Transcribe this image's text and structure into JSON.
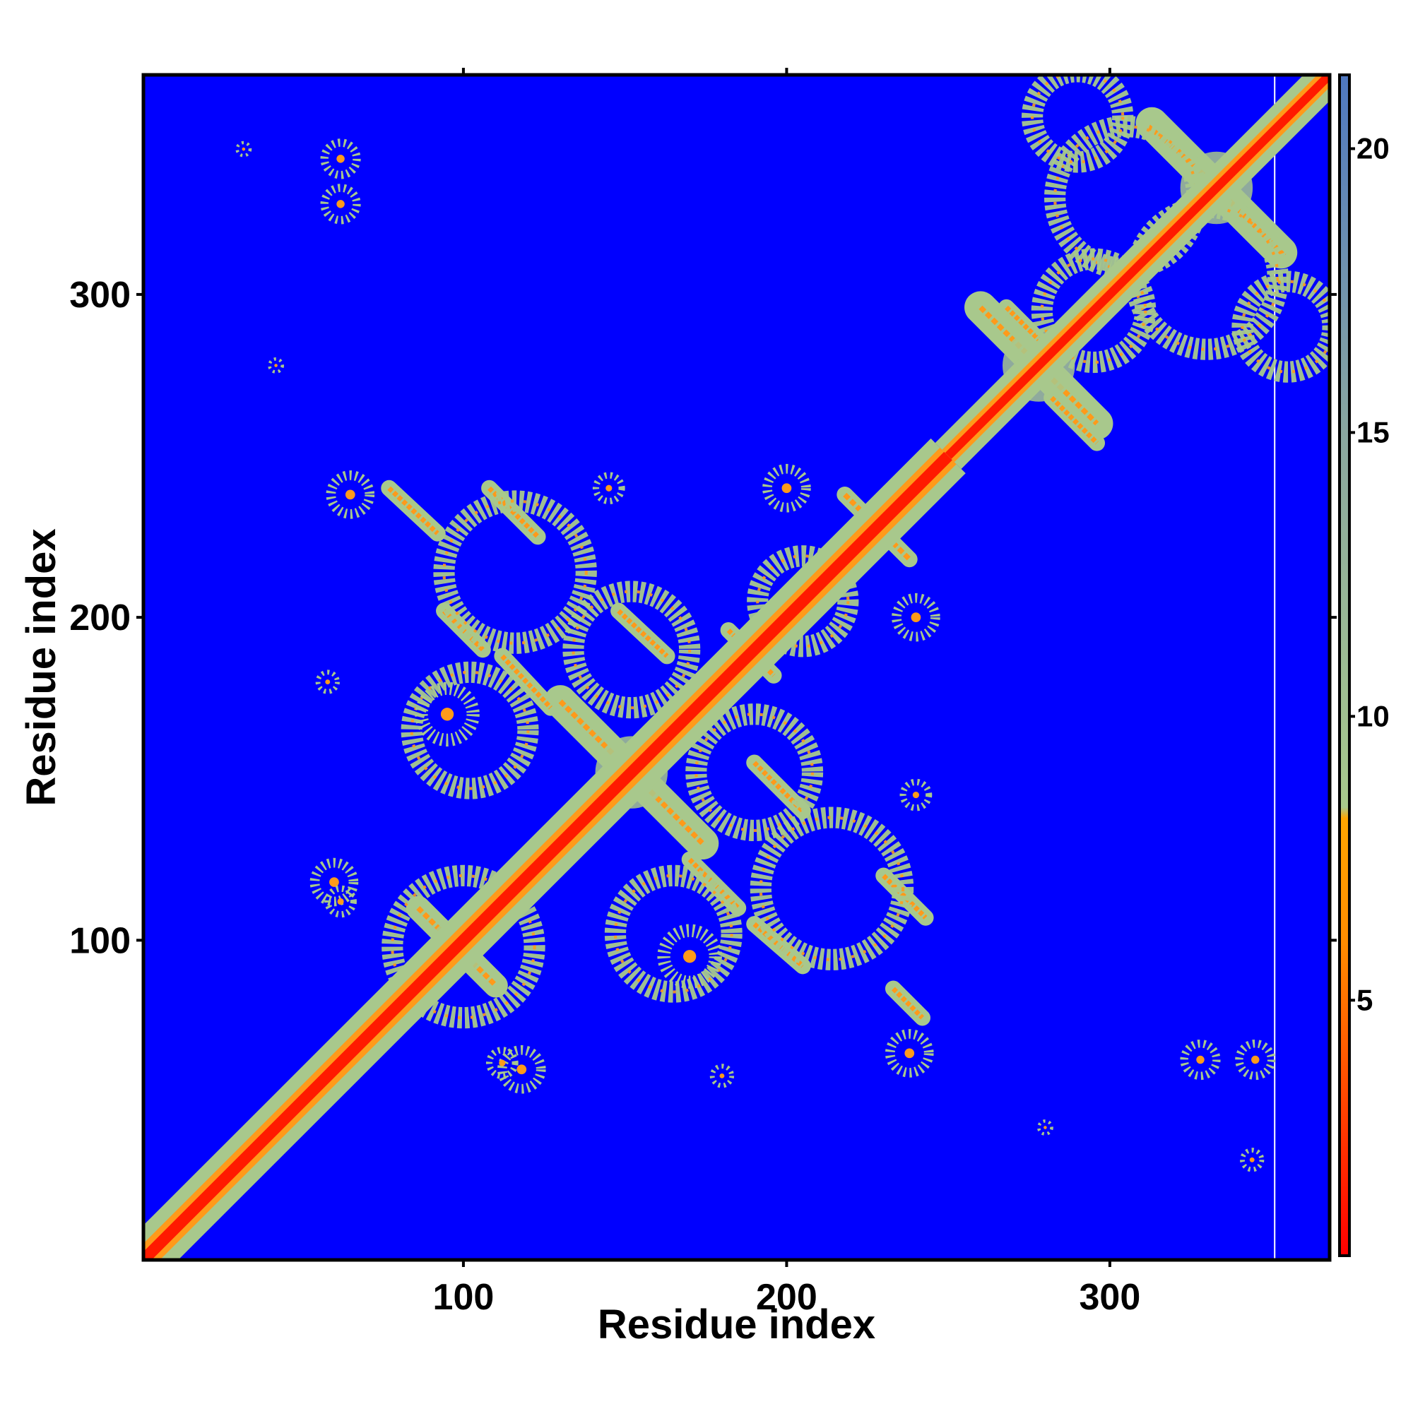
{
  "chart_data": {
    "type": "heatmap",
    "title": "",
    "xlabel": "Residue index",
    "ylabel": "Residue index",
    "xlim": [
      1,
      368
    ],
    "ylim": [
      1,
      368
    ],
    "x_ticks": [
      100,
      200,
      300
    ],
    "y_ticks": [
      100,
      200,
      300
    ],
    "colorbar": {
      "range": [
        0.5,
        21.3
      ],
      "ticks": [
        5,
        10,
        15,
        20
      ],
      "stops": [
        {
          "value": 0.5,
          "color": "#ff0000"
        },
        {
          "value": 6.0,
          "color": "#ff8c00"
        },
        {
          "value": 8.2,
          "color": "#ffa500"
        },
        {
          "value": 8.4,
          "color": "#a8c88c"
        },
        {
          "value": 15.0,
          "color": "#8aa7a0"
        },
        {
          "value": 21.3,
          "color": "#4f78c0"
        }
      ],
      "background_color": "#0000ff",
      "background_value": ">20"
    },
    "diagonal": [
      {
        "from": 1,
        "to": 250,
        "band_width": 8
      },
      {
        "from": 250,
        "to": 368,
        "band_width": 6
      }
    ],
    "features": [
      {
        "kind": "cross",
        "center": [
          152,
          152
        ],
        "half_length": 22,
        "band": 4
      },
      {
        "kind": "cross",
        "center": [
          98,
          98
        ],
        "half_length": 12,
        "band": 3
      },
      {
        "kind": "cross",
        "center": [
          278,
          278
        ],
        "half_length": 18,
        "band": 4
      },
      {
        "kind": "cross",
        "center": [
          333,
          333
        ],
        "half_length": 20,
        "band": 4
      },
      {
        "kind": "cross",
        "center": [
          228,
          228
        ],
        "half_length": 10,
        "band": 2
      },
      {
        "kind": "line",
        "from": [
          77,
          240
        ],
        "to": [
          92,
          226
        ]
      },
      {
        "kind": "line",
        "from": [
          108,
          240
        ],
        "to": [
          123,
          225
        ]
      },
      {
        "kind": "line",
        "from": [
          94,
          202
        ],
        "to": [
          106,
          190
        ]
      },
      {
        "kind": "line",
        "from": [
          112,
          188
        ],
        "to": [
          127,
          172
        ]
      },
      {
        "kind": "line",
        "from": [
          148,
          202
        ],
        "to": [
          163,
          188
        ]
      },
      {
        "kind": "line",
        "from": [
          182,
          196
        ],
        "to": [
          196,
          182
        ]
      },
      {
        "kind": "line",
        "from": [
          190,
          155
        ],
        "to": [
          205,
          140
        ]
      },
      {
        "kind": "line",
        "from": [
          170,
          125
        ],
        "to": [
          185,
          110
        ]
      },
      {
        "kind": "line",
        "from": [
          190,
          105
        ],
        "to": [
          205,
          92
        ]
      },
      {
        "kind": "line",
        "from": [
          230,
          120
        ],
        "to": [
          243,
          107
        ]
      },
      {
        "kind": "line",
        "from": [
          233,
          85
        ],
        "to": [
          242,
          76
        ]
      },
      {
        "kind": "line",
        "from": [
          268,
          296
        ],
        "to": [
          280,
          284
        ]
      },
      {
        "kind": "line",
        "from": [
          282,
          268
        ],
        "to": [
          296,
          254
        ]
      },
      {
        "kind": "line",
        "from": [
          312,
          352
        ],
        "to": [
          326,
          340
        ]
      },
      {
        "kind": "line",
        "from": [
          340,
          326
        ],
        "to": [
          354,
          312
        ]
      },
      {
        "kind": "ring",
        "center": [
          100,
          98
        ],
        "radius": 22,
        "band": 3
      },
      {
        "kind": "ring",
        "center": [
          116,
          214
        ],
        "radius": 22,
        "band": 3
      },
      {
        "kind": "ring",
        "center": [
          152,
          190
        ],
        "radius": 18,
        "band": 3
      },
      {
        "kind": "ring",
        "center": [
          190,
          152
        ],
        "radius": 18,
        "band": 3
      },
      {
        "kind": "ring",
        "center": [
          214,
          116
        ],
        "radius": 22,
        "band": 3
      },
      {
        "kind": "ring",
        "center": [
          165,
          102
        ],
        "radius": 18,
        "band": 3
      },
      {
        "kind": "ring",
        "center": [
          102,
          165
        ],
        "radius": 18,
        "band": 3
      },
      {
        "kind": "ring",
        "center": [
          205,
          205
        ],
        "radius": 14,
        "band": 3
      },
      {
        "kind": "ring",
        "center": [
          305,
          330
        ],
        "radius": 22,
        "band": 3
      },
      {
        "kind": "ring",
        "center": [
          330,
          305
        ],
        "radius": 22,
        "band": 3
      },
      {
        "kind": "ring",
        "center": [
          295,
          295
        ],
        "radius": 16,
        "band": 3
      },
      {
        "kind": "ring",
        "center": [
          355,
          290
        ],
        "radius": 14,
        "band": 3
      },
      {
        "kind": "ring",
        "center": [
          290,
          355
        ],
        "radius": 14,
        "band": 3
      },
      {
        "kind": "blob",
        "center": [
          62,
          342
        ],
        "radius": 5
      },
      {
        "kind": "blob",
        "center": [
          62,
          328
        ],
        "radius": 5
      },
      {
        "kind": "blob",
        "center": [
          32,
          345
        ],
        "radius": 2
      },
      {
        "kind": "blob",
        "center": [
          42,
          278
        ],
        "radius": 2
      },
      {
        "kind": "blob",
        "center": [
          345,
          63
        ],
        "radius": 5
      },
      {
        "kind": "blob",
        "center": [
          328,
          63
        ],
        "radius": 5
      },
      {
        "kind": "blob",
        "center": [
          344,
          32
        ],
        "radius": 3
      },
      {
        "kind": "blob",
        "center": [
          280,
          42
        ],
        "radius": 2
      },
      {
        "kind": "blob",
        "center": [
          60,
          118
        ],
        "radius": 6
      },
      {
        "kind": "blob",
        "center": [
          118,
          60
        ],
        "radius": 6
      },
      {
        "kind": "blob",
        "center": [
          95,
          170
        ],
        "radius": 8
      },
      {
        "kind": "blob",
        "center": [
          170,
          95
        ],
        "radius": 8
      },
      {
        "kind": "blob",
        "center": [
          240,
          200
        ],
        "radius": 6
      },
      {
        "kind": "blob",
        "center": [
          200,
          240
        ],
        "radius": 6
      },
      {
        "kind": "blob",
        "center": [
          240,
          145
        ],
        "radius": 4
      },
      {
        "kind": "blob",
        "center": [
          145,
          240
        ],
        "radius": 4
      },
      {
        "kind": "blob",
        "center": [
          238,
          65
        ],
        "radius": 6
      },
      {
        "kind": "blob",
        "center": [
          65,
          238
        ],
        "radius": 6
      },
      {
        "kind": "blob",
        "center": [
          112,
          62
        ],
        "radius": 4
      },
      {
        "kind": "blob",
        "center": [
          62,
          112
        ],
        "radius": 4
      },
      {
        "kind": "blob",
        "center": [
          180,
          58
        ],
        "radius": 3
      },
      {
        "kind": "blob",
        "center": [
          58,
          180
        ],
        "radius": 3
      }
    ],
    "white_column_x": 351,
    "grid": false,
    "legend": "colorbar-right"
  }
}
